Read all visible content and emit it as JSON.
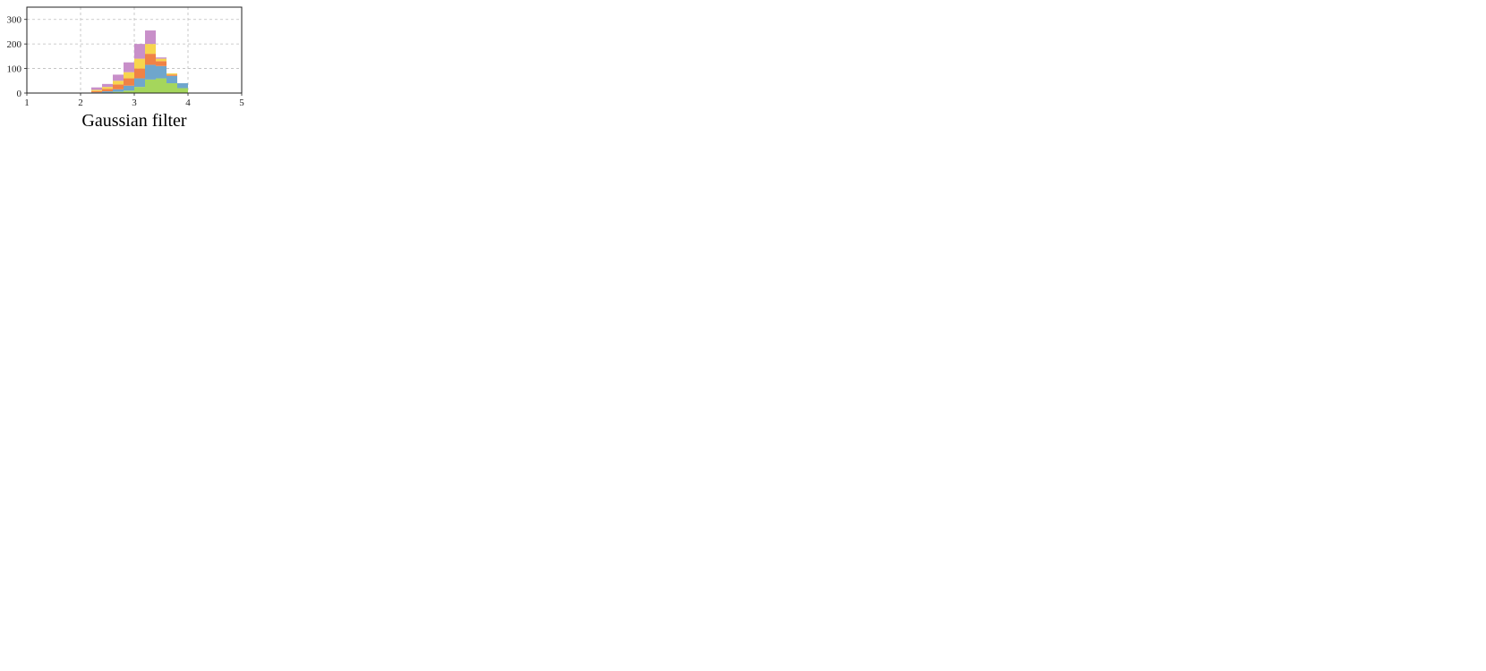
{
  "figure": {
    "colors": {
      "level1": "#a5d65c",
      "level2": "#6fa6cc",
      "level3": "#f08246",
      "level4": "#f7d54e",
      "level5": "#c88fc9",
      "grid": "#bdbdbd",
      "frame": "#222222"
    }
  },
  "chart_data": [
    {
      "type": "bar",
      "stacked": true,
      "title": "Gaussian filter",
      "bins": [
        2.2,
        2.4,
        2.6,
        2.8,
        3.0,
        3.2,
        3.4,
        3.6,
        3.8
      ],
      "binwidth": 0.2,
      "series": [
        {
          "values": [
            0,
            2,
            5,
            10,
            25,
            55,
            60,
            40,
            20
          ]
        },
        {
          "values": [
            3,
            5,
            10,
            20,
            35,
            60,
            50,
            30,
            20
          ]
        },
        {
          "values": [
            5,
            10,
            20,
            30,
            40,
            45,
            20,
            5,
            0
          ]
        },
        {
          "values": [
            5,
            8,
            15,
            25,
            40,
            40,
            10,
            5,
            0
          ]
        },
        {
          "values": [
            10,
            12,
            25,
            40,
            60,
            55,
            5,
            0,
            0
          ]
        }
      ],
      "xlim": [
        1,
        5
      ],
      "ylim": [
        0,
        350
      ],
      "xticks": [
        1,
        2,
        3,
        4,
        5
      ],
      "yticks": [
        0,
        100,
        200,
        300
      ],
      "grid": true
    }
  ]
}
